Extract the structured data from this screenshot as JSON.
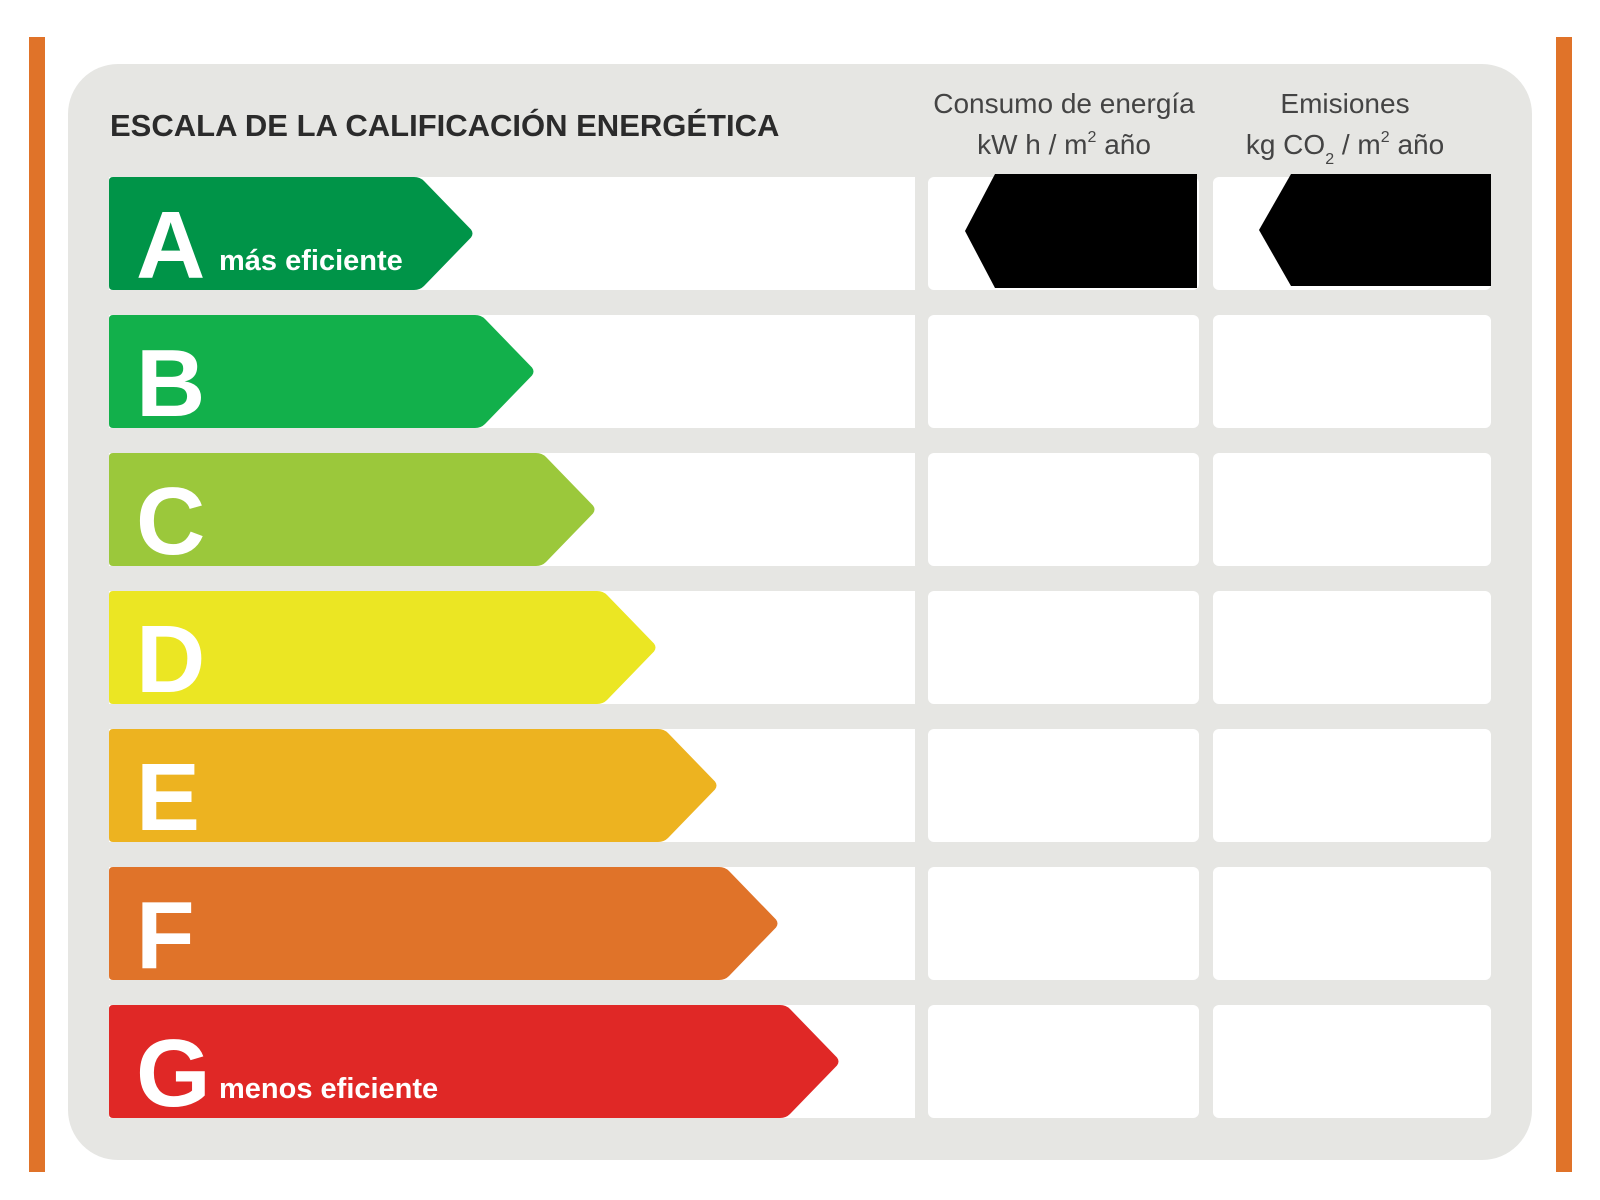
{
  "title": "ESCALA DE LA CALIFICACIÓN ENERGÉTICA",
  "columns": [
    {
      "line1": "Consumo de energía",
      "unit_pre": "kW h  / m",
      "unit_sup": "2",
      "unit_post": " año"
    },
    {
      "line1": "Emisiones",
      "unit_pre": "kg CO",
      "unit_sub": "2",
      "unit_mid": "  / m",
      "unit_sup": "2",
      "unit_post": " año"
    }
  ],
  "grades": [
    {
      "letter": "A",
      "label": "más eficiente",
      "color": "#009448"
    },
    {
      "letter": "B",
      "color": "#12b04b"
    },
    {
      "letter": "C",
      "color": "#9bc83b"
    },
    {
      "letter": "D",
      "color": "#ebe623"
    },
    {
      "letter": "E",
      "color": "#edb320"
    },
    {
      "letter": "F",
      "color": "#e07329"
    },
    {
      "letter": "G",
      "label": "menos eficiente",
      "color": "#e02826"
    }
  ]
}
